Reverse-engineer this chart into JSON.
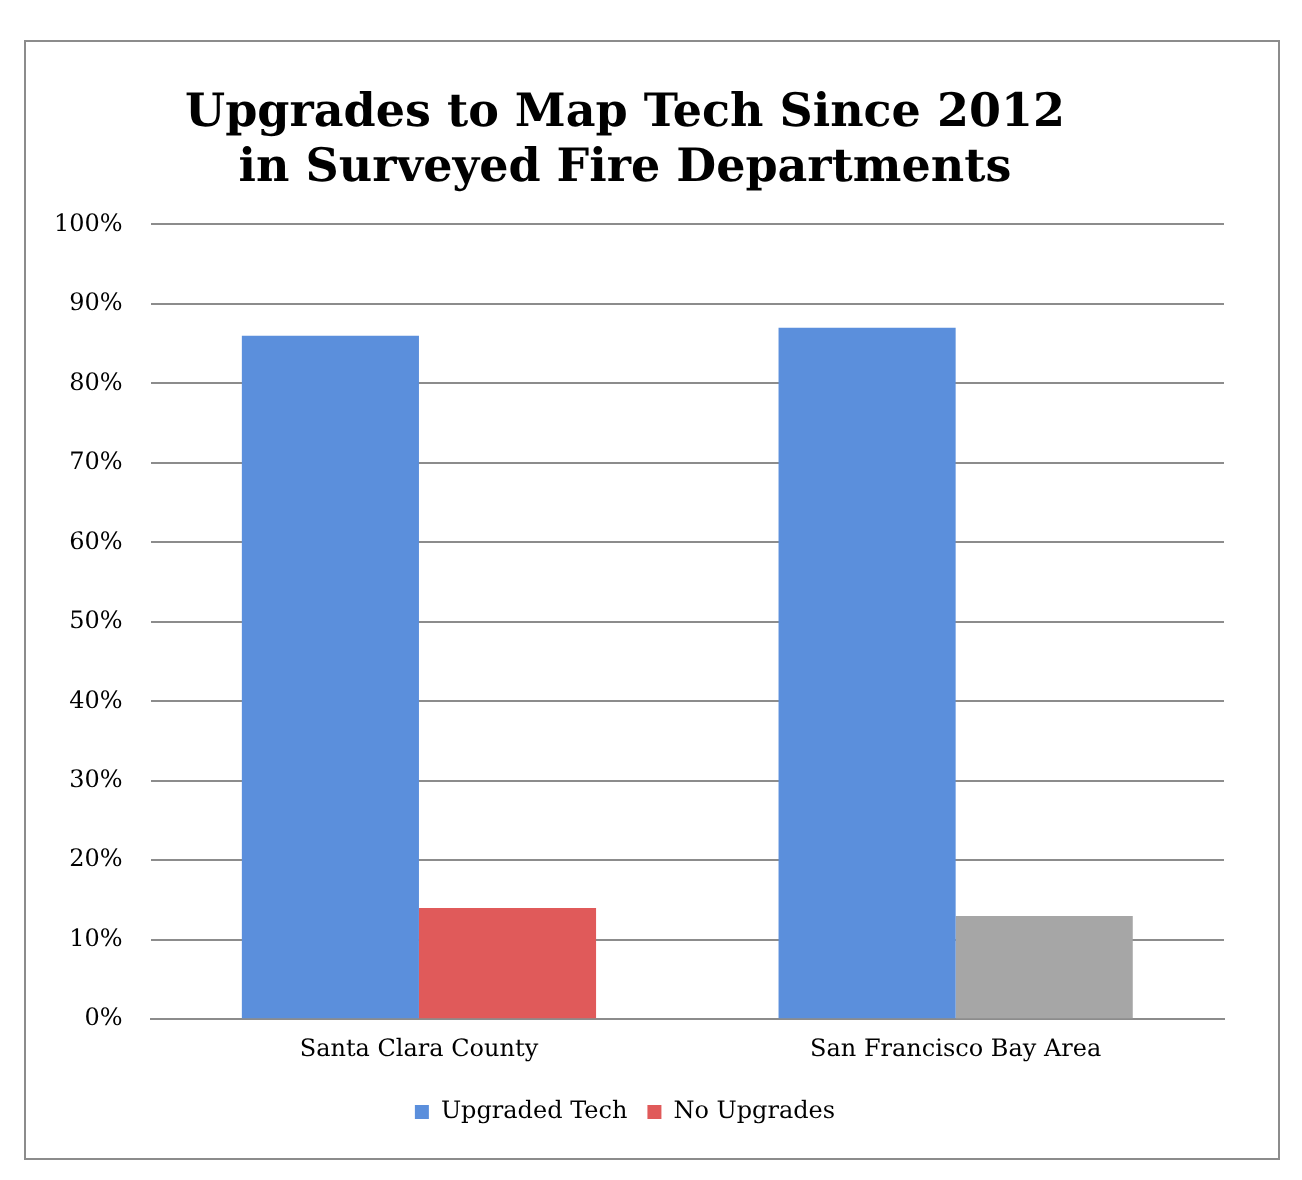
{
  "chart_data": {
    "type": "bar",
    "title": "Upgrades to Map Tech Since 2012\nin Surveyed Fire Departments",
    "categories": [
      "Santa Clara County",
      "San Francisco Bay Area"
    ],
    "series": [
      {
        "name": "Upgraded Tech",
        "color": "#5b8fdc",
        "values": [
          86,
          87
        ]
      },
      {
        "name": "No Upgrades",
        "color": "#e05a5a",
        "colors": [
          "#e05a5a",
          "#a6a6a6"
        ],
        "values": [
          14,
          13
        ]
      }
    ],
    "ylim": [
      0,
      100
    ],
    "yticks": [
      {
        "value": 0,
        "label": "0%"
      },
      {
        "value": 10,
        "label": "10%"
      },
      {
        "value": 20,
        "label": "20%"
      },
      {
        "value": 30,
        "label": "30%"
      },
      {
        "value": 40,
        "label": "40%"
      },
      {
        "value": 50,
        "label": "50%"
      },
      {
        "value": 60,
        "label": "60%"
      },
      {
        "value": 70,
        "label": "70%"
      },
      {
        "value": 80,
        "label": "80%"
      },
      {
        "value": 90,
        "label": "90%"
      },
      {
        "value": 100,
        "label": "100%"
      }
    ],
    "grid": "y",
    "legend": "bottom"
  }
}
